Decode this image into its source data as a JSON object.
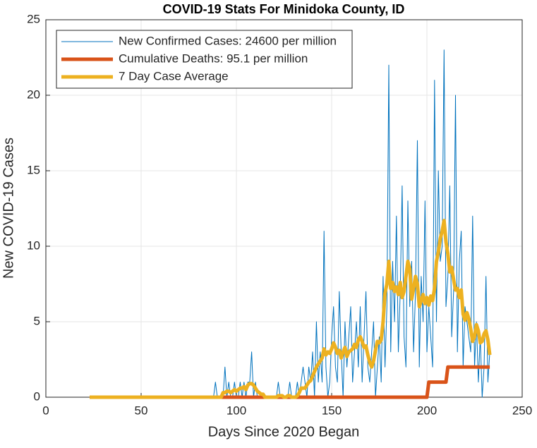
{
  "chart_data": {
    "type": "line",
    "title": "COVID-19 Stats For Minidoka County, ID",
    "xlabel": "Days Since 2020 Began",
    "ylabel": "New COVID-19 Cases",
    "xlim": [
      0,
      250
    ],
    "xticks": [
      0,
      50,
      100,
      150,
      200,
      250
    ],
    "ylim": [
      0,
      25
    ],
    "yticks": [
      0,
      5,
      10,
      15,
      20,
      25
    ],
    "grid": true,
    "legend": "top-left",
    "x": [
      23,
      24,
      25,
      26,
      27,
      28,
      29,
      30,
      31,
      32,
      33,
      34,
      35,
      36,
      37,
      38,
      39,
      40,
      41,
      42,
      43,
      44,
      45,
      46,
      47,
      48,
      49,
      50,
      51,
      52,
      53,
      54,
      55,
      56,
      57,
      58,
      59,
      60,
      61,
      62,
      63,
      64,
      65,
      66,
      67,
      68,
      69,
      70,
      71,
      72,
      73,
      74,
      75,
      76,
      77,
      78,
      79,
      80,
      81,
      82,
      83,
      84,
      85,
      86,
      87,
      88,
      89,
      90,
      91,
      92,
      93,
      94,
      95,
      96,
      97,
      98,
      99,
      100,
      101,
      102,
      103,
      104,
      105,
      106,
      107,
      108,
      109,
      110,
      111,
      112,
      113,
      114,
      115,
      116,
      117,
      118,
      119,
      120,
      121,
      122,
      123,
      124,
      125,
      126,
      127,
      128,
      129,
      130,
      131,
      132,
      133,
      134,
      135,
      136,
      137,
      138,
      139,
      140,
      141,
      142,
      143,
      144,
      145,
      146,
      147,
      148,
      149,
      150,
      151,
      152,
      153,
      154,
      155,
      156,
      157,
      158,
      159,
      160,
      161,
      162,
      163,
      164,
      165,
      166,
      167,
      168,
      169,
      170,
      171,
      172,
      173,
      174,
      175,
      176,
      177,
      178,
      179,
      180,
      181,
      182,
      183,
      184,
      185,
      186,
      187,
      188,
      189,
      190,
      191,
      192,
      193,
      194,
      195,
      196,
      197,
      198,
      199,
      200,
      201,
      202,
      203,
      204,
      205,
      206,
      207,
      208,
      209,
      210,
      211,
      212,
      213,
      214,
      215,
      216,
      217,
      218,
      219,
      220,
      221,
      222,
      223,
      224,
      225,
      226,
      227,
      228,
      229,
      230,
      231,
      232,
      233
    ],
    "series": [
      {
        "name": "New Confirmed Cases: 24600 per million",
        "color": "#0072bd",
        "values": [
          0,
          0,
          0,
          0,
          0,
          0,
          0,
          0,
          0,
          0,
          0,
          0,
          0,
          0,
          0,
          0,
          0,
          0,
          0,
          0,
          0,
          0,
          0,
          0,
          0,
          0,
          0,
          0,
          0,
          0,
          0,
          0,
          0,
          0,
          0,
          0,
          0,
          0,
          0,
          0,
          0,
          0,
          0,
          0,
          0,
          0,
          0,
          0,
          0,
          0,
          0,
          0,
          0,
          0,
          0,
          0,
          0,
          0,
          0,
          0,
          0,
          0,
          0,
          0,
          0,
          0,
          1,
          0,
          0,
          0,
          0,
          2,
          0,
          1,
          0,
          0,
          1,
          0,
          0,
          1,
          0,
          1,
          0,
          1,
          1,
          3,
          0,
          1,
          0,
          0,
          0,
          0,
          0,
          0,
          0,
          0,
          0,
          0,
          0,
          1,
          0,
          0,
          0,
          0,
          0,
          1,
          0,
          0,
          0,
          1,
          0,
          1,
          2,
          1,
          0,
          2,
          1,
          3,
          0,
          5,
          1,
          3,
          1,
          11,
          2,
          0,
          1,
          4,
          6,
          2,
          1,
          7,
          3,
          0,
          5,
          2,
          4,
          6,
          1,
          3,
          5,
          2,
          6,
          1,
          4,
          7,
          2,
          1,
          3,
          5,
          0,
          2,
          4,
          1,
          8,
          2,
          6,
          22,
          3,
          9,
          5,
          12,
          3,
          7,
          14,
          4,
          2,
          13,
          6,
          9,
          3,
          7,
          17,
          2,
          8,
          5,
          13,
          3,
          6,
          4,
          2,
          21,
          5,
          15,
          9,
          10,
          23,
          6,
          8,
          14,
          4,
          7,
          20,
          3,
          9,
          11,
          2,
          6,
          5,
          4,
          3,
          12,
          2,
          5,
          1,
          4,
          0,
          2,
          8,
          1,
          3
        ]
      },
      {
        "name": "Cumulative Deaths: 95.1 per million",
        "color": "#d95319",
        "values": [
          0,
          0,
          0,
          0,
          0,
          0,
          0,
          0,
          0,
          0,
          0,
          0,
          0,
          0,
          0,
          0,
          0,
          0,
          0,
          0,
          0,
          0,
          0,
          0,
          0,
          0,
          0,
          0,
          0,
          0,
          0,
          0,
          0,
          0,
          0,
          0,
          0,
          0,
          0,
          0,
          0,
          0,
          0,
          0,
          0,
          0,
          0,
          0,
          0,
          0,
          0,
          0,
          0,
          0,
          0,
          0,
          0,
          0,
          0,
          0,
          0,
          0,
          0,
          0,
          0,
          0,
          0,
          0,
          0,
          0,
          0,
          0,
          0,
          0,
          0,
          0,
          0,
          0,
          0,
          0,
          0,
          0,
          0,
          0,
          0,
          0,
          0,
          0,
          0,
          0,
          0,
          0,
          0,
          0,
          0,
          0,
          0,
          0,
          0,
          0,
          0,
          0,
          0,
          0,
          0,
          0,
          0,
          0,
          0,
          0,
          0,
          0,
          0,
          0,
          0,
          0,
          0,
          0,
          0,
          0,
          0,
          0,
          0,
          0,
          0,
          0,
          0,
          0,
          0,
          0,
          0,
          0,
          0,
          0,
          0,
          0,
          0,
          0,
          0,
          0,
          0,
          0,
          0,
          0,
          0,
          0,
          0,
          0,
          0,
          0,
          0,
          0,
          0,
          0,
          0,
          0,
          0,
          0,
          0,
          0,
          0,
          0,
          0,
          0,
          0,
          0,
          0,
          0,
          0,
          0,
          0,
          0,
          0,
          0,
          0,
          0,
          0,
          0,
          1,
          1,
          1,
          1,
          1,
          1,
          1,
          1,
          1,
          1,
          2,
          2,
          2,
          2,
          2,
          2,
          2,
          2,
          2,
          2,
          2,
          2,
          2,
          2,
          2,
          2,
          2,
          2,
          2,
          2,
          2,
          2,
          2
        ]
      },
      {
        "name": "7 Day Case Average",
        "color": "#edb120",
        "values": [
          0,
          0,
          0,
          0,
          0,
          0,
          0,
          0,
          0,
          0,
          0,
          0,
          0,
          0,
          0,
          0,
          0,
          0,
          0,
          0,
          0,
          0,
          0,
          0,
          0,
          0,
          0,
          0,
          0,
          0,
          0,
          0,
          0,
          0,
          0,
          0,
          0,
          0,
          0,
          0,
          0,
          0,
          0,
          0,
          0,
          0,
          0,
          0,
          0,
          0,
          0,
          0,
          0,
          0,
          0,
          0,
          0,
          0,
          0,
          0,
          0,
          0,
          0,
          0,
          0,
          0,
          0,
          0,
          0,
          0,
          0.3,
          0.3,
          0.4,
          0.4,
          0.3,
          0.4,
          0.5,
          0.4,
          0.5,
          0.6,
          0.6,
          0.7,
          0.5,
          0.8,
          0.9,
          0.9,
          0.8,
          0.6,
          0.4,
          0.3,
          0.2,
          0.2,
          0,
          0,
          0,
          0,
          0,
          0,
          0,
          0.1,
          0.1,
          0.1,
          0,
          0,
          0.1,
          0.1,
          0,
          0,
          0,
          0.1,
          0.3,
          0.6,
          0.6,
          0.6,
          0.8,
          1,
          1.1,
          1.4,
          1.7,
          2,
          2.2,
          2.4,
          2.6,
          3.2,
          2.8,
          3,
          2.9,
          3.2,
          3.6,
          3.3,
          2.9,
          3.1,
          2.6,
          3,
          3.3,
          2.7,
          3,
          3.1,
          3.2,
          3.5,
          3.3,
          3.8,
          4,
          3.7,
          3.3,
          3.4,
          2.8,
          2.3,
          2.0,
          2.4,
          3.1,
          3.7,
          3.6,
          3.8,
          5.0,
          6.9,
          7.5,
          9.0,
          7.2,
          7.6,
          7.0,
          7.3,
          6.8,
          7.6,
          6.6,
          7.0,
          8.0,
          9.0,
          8.5,
          6.5,
          7.2,
          8.0,
          7.5,
          6.0,
          6.4,
          6.8,
          6.2,
          6.6,
          6.1,
          6.7,
          6.4,
          7.2,
          9.0,
          9.6,
          10.5,
          11.0,
          11.7,
          10.3,
          9.5,
          8.3,
          8.6,
          7.8,
          7.1,
          7.2,
          6.6,
          7.1,
          5.5,
          5.1,
          5.6,
          5.2,
          4.5,
          3.7,
          4.0,
          4.8,
          4.4,
          3.6,
          3.7,
          4.2,
          4.4,
          3.8,
          2.8
        ]
      }
    ]
  }
}
